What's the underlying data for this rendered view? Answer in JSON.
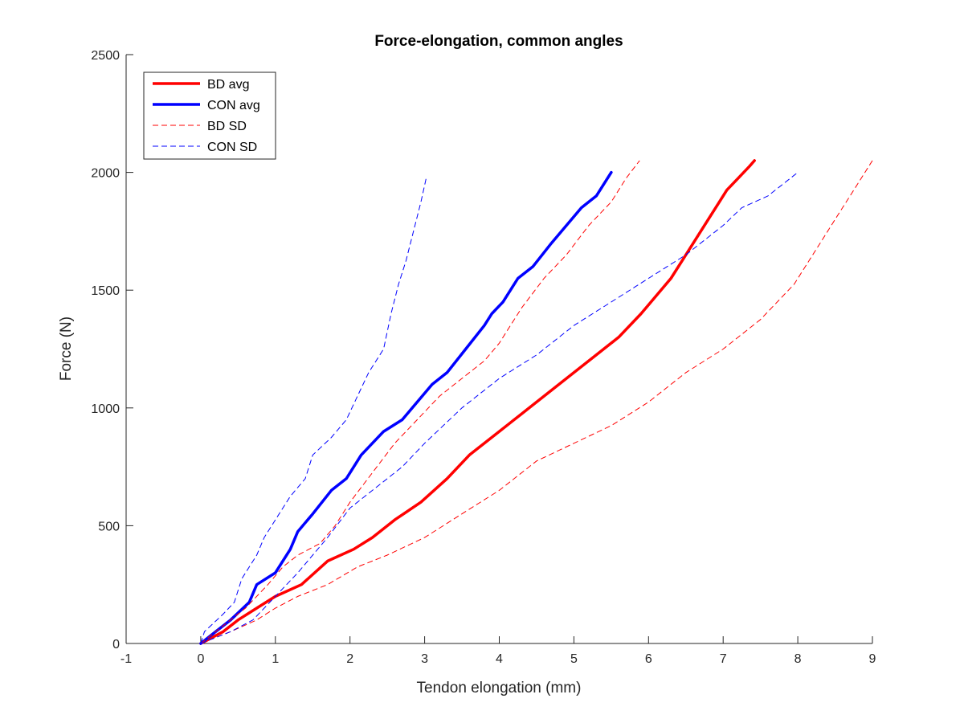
{
  "chart_data": {
    "type": "line",
    "title": "Force-elongation, common angles",
    "xlabel": "Tendon elongation (mm)",
    "ylabel": "Force (N)",
    "xlim": [
      -1,
      9
    ],
    "ylim": [
      0,
      2500
    ],
    "xticks": [
      -1,
      0,
      1,
      2,
      3,
      4,
      5,
      6,
      7,
      8,
      9
    ],
    "yticks": [
      0,
      500,
      1000,
      1500,
      2000,
      2500
    ],
    "grid": false,
    "legend_position": "top-left",
    "series": [
      {
        "name": "BD avg",
        "color": "#ff0000",
        "style": "solid",
        "x": [
          0,
          0.3,
          0.5,
          0.75,
          1.0,
          1.35,
          1.7,
          2.05,
          2.3,
          2.6,
          2.95,
          3.3,
          3.6,
          4.0,
          4.3,
          4.6,
          5.0,
          5.3,
          5.6,
          5.9,
          6.1,
          6.3,
          6.5,
          6.7,
          6.9,
          7.05,
          7.2,
          7.35,
          7.42
        ],
        "y": [
          0,
          50,
          100,
          150,
          200,
          250,
          350,
          400,
          450,
          525,
          600,
          700,
          800,
          900,
          975,
          1050,
          1150,
          1225,
          1300,
          1400,
          1475,
          1550,
          1650,
          1750,
          1850,
          1925,
          1975,
          2025,
          2050
        ]
      },
      {
        "name": "CON avg",
        "color": "#0000ff",
        "style": "solid",
        "x": [
          0,
          0.2,
          0.4,
          0.65,
          0.75,
          1.0,
          1.2,
          1.3,
          1.5,
          1.75,
          1.95,
          2.15,
          2.45,
          2.7,
          2.9,
          3.1,
          3.3,
          3.55,
          3.8,
          3.9,
          4.05,
          4.25,
          4.45,
          4.7,
          4.9,
          5.1,
          5.3,
          5.5
        ],
        "y": [
          0,
          50,
          100,
          175,
          250,
          300,
          400,
          475,
          550,
          650,
          700,
          800,
          900,
          950,
          1025,
          1100,
          1150,
          1250,
          1350,
          1400,
          1450,
          1550,
          1600,
          1700,
          1775,
          1850,
          1900,
          2000
        ]
      },
      {
        "name": "BD SD",
        "color": "#ff0000",
        "style": "dashed",
        "x": [
          0,
          0.4,
          0.75,
          1.0,
          1.3,
          1.7,
          2.1,
          2.5,
          3.0,
          3.5,
          4.0,
          4.5,
          5.0,
          5.5,
          6.0,
          6.5,
          7.0,
          7.5,
          7.95,
          8.1,
          8.3,
          8.5,
          8.75,
          9.0
        ],
        "y": [
          0,
          50,
          100,
          150,
          200,
          250,
          325,
          375,
          450,
          550,
          650,
          775,
          850,
          925,
          1025,
          1150,
          1250,
          1375,
          1525,
          1600,
          1700,
          1800,
          1925,
          2050
        ]
      },
      {
        "name": "BD SD",
        "color": "#ff0000",
        "style": "dashed",
        "x": [
          0,
          0.3,
          0.6,
          0.9,
          1.1,
          1.3,
          1.6,
          1.8,
          2.0,
          2.3,
          2.6,
          2.9,
          3.2,
          3.5,
          3.8,
          4.0,
          4.15,
          4.3,
          4.6,
          4.9,
          5.2,
          5.5,
          5.7,
          5.88
        ],
        "y": [
          0,
          75,
          150,
          250,
          325,
          375,
          425,
          500,
          600,
          725,
          850,
          950,
          1050,
          1125,
          1200,
          1275,
          1350,
          1425,
          1550,
          1650,
          1775,
          1875,
          1975,
          2050
        ]
      },
      {
        "name": "CON SD",
        "color": "#0000ff",
        "style": "dashed",
        "x": [
          0,
          0.05,
          0.3,
          0.45,
          0.55,
          0.75,
          0.85,
          1.0,
          1.2,
          1.4,
          1.5,
          1.75,
          1.95,
          2.1,
          2.25,
          2.45,
          2.55,
          2.65,
          2.75,
          2.85,
          2.95,
          3.02
        ],
        "y": [
          0,
          50,
          125,
          175,
          275,
          375,
          450,
          525,
          625,
          700,
          800,
          875,
          950,
          1050,
          1150,
          1250,
          1400,
          1525,
          1625,
          1750,
          1875,
          1975
        ]
      },
      {
        "name": "CON SD",
        "color": "#0000ff",
        "style": "dashed",
        "x": [
          0,
          0.4,
          0.7,
          1.0,
          1.3,
          1.7,
          2.0,
          2.3,
          2.7,
          3.0,
          3.5,
          4.0,
          4.5,
          5.0,
          5.5,
          6.0,
          6.5,
          7.0,
          7.25,
          7.6,
          7.8,
          8.0
        ],
        "y": [
          0,
          50,
          100,
          200,
          300,
          450,
          575,
          650,
          750,
          850,
          1000,
          1125,
          1225,
          1350,
          1450,
          1550,
          1650,
          1775,
          1850,
          1900,
          1950,
          2000
        ]
      }
    ],
    "legend": [
      {
        "label": "BD avg",
        "color": "#ff0000",
        "style": "solid"
      },
      {
        "label": "CON avg",
        "color": "#0000ff",
        "style": "solid"
      },
      {
        "label": "BD SD",
        "color": "#ff0000",
        "style": "dashed"
      },
      {
        "label": "CON SD",
        "color": "#0000ff",
        "style": "dashed"
      }
    ]
  }
}
